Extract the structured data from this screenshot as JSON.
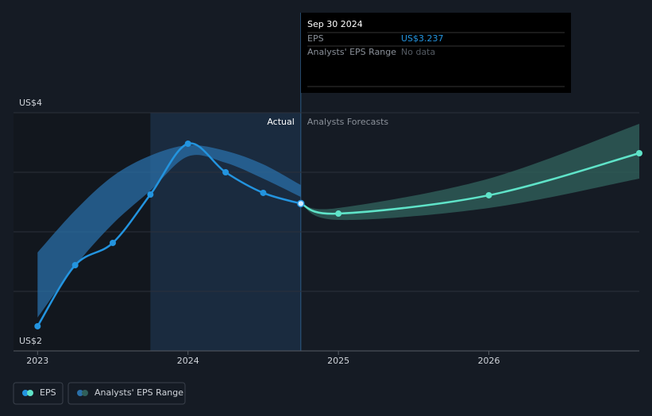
{
  "chart_data": {
    "type": "line",
    "x": [
      2023,
      2023.25,
      2023.5,
      2023.75,
      2024,
      2024.25,
      2024.5,
      2024.75
    ],
    "series": [
      {
        "name": "EPS",
        "color": "#2394df",
        "values": [
          2.207,
          2.72,
          2.907,
          3.313,
          3.74,
          3.5,
          3.327,
          3.237
        ]
      }
    ],
    "forecast": {
      "x": [
        2024.75,
        2025,
        2026,
        2027
      ],
      "values": [
        3.237,
        3.153,
        3.307,
        3.66
      ],
      "color": "#5fe3c8"
    },
    "range": {
      "name": "Analysts' EPS Range",
      "color": "#2a6fa8",
      "forecast_color": "#2f5f5a",
      "x": [
        2023,
        2023.25,
        2023.5,
        2023.75,
        2024,
        2024.25,
        2024.5,
        2024.75
      ],
      "high": [
        2.827,
        3.18,
        3.467,
        3.64,
        3.727,
        3.68,
        3.567,
        3.393
      ],
      "low": [
        2.28,
        2.713,
        3.067,
        3.347,
        3.633,
        3.58,
        3.447,
        3.293
      ],
      "forecast_x": [
        2024.75,
        2025,
        2026,
        2027
      ],
      "forecast_high": [
        3.237,
        3.2,
        3.447,
        3.907
      ],
      "forecast_low": [
        3.237,
        3.1,
        3.2,
        3.447
      ]
    },
    "highlight": [
      2023.75,
      2024.75
    ],
    "region_labels": [
      "Actual",
      "Analysts Forecasts"
    ],
    "xlim": [
      2022.84,
      2027
    ],
    "xticks": [
      2023,
      2024,
      2025,
      2026
    ],
    "ylim": [
      2,
      4
    ],
    "yticks": [
      {
        "value": 4,
        "label": "US$4"
      },
      {
        "value": 2,
        "label": "US$2"
      }
    ],
    "ygrid": [
      2,
      2.5,
      3,
      3.5,
      4
    ],
    "tooltip": {
      "date": "Sep 30 2024",
      "rows": [
        {
          "label": "EPS",
          "value": "US$3.237"
        },
        {
          "label": "Analysts' EPS Range",
          "value": "No data"
        }
      ]
    }
  }
}
